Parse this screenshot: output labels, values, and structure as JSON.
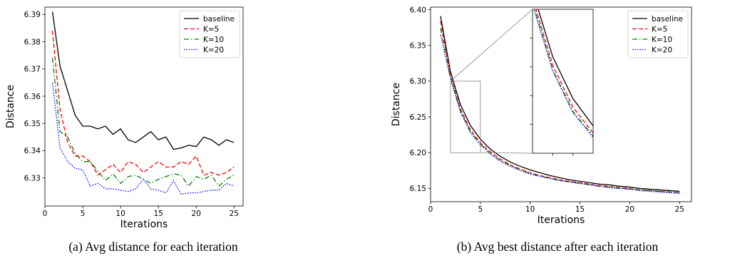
{
  "chart_data": [
    {
      "type": "line",
      "caption": "(a) Avg distance for each iteration",
      "xlabel": "Iterations",
      "ylabel": "Distance",
      "xlim": [
        0,
        26.2
      ],
      "ylim": [
        6.3197,
        6.3927
      ],
      "xticks": [
        0,
        5,
        10,
        15,
        20,
        25
      ],
      "yticks": [
        6.33,
        6.34,
        6.35,
        6.36,
        6.37,
        6.38,
        6.39
      ],
      "grid": false,
      "legend": "top-right",
      "x": [
        1,
        2,
        3,
        4,
        5,
        6,
        7,
        8,
        9,
        10,
        11,
        12,
        13,
        14,
        15,
        16,
        17,
        18,
        19,
        20,
        21,
        22,
        23,
        24,
        25
      ],
      "series": [
        {
          "name": "baseline",
          "color": "#000000",
          "dash": "solid",
          "values": [
            6.391,
            6.371,
            6.362,
            6.353,
            6.349,
            6.349,
            6.348,
            6.349,
            6.346,
            6.348,
            6.344,
            6.343,
            6.345,
            6.347,
            6.344,
            6.345,
            6.3405,
            6.341,
            6.342,
            6.3415,
            6.345,
            6.344,
            6.342,
            6.344,
            6.343
          ]
        },
        {
          "name": "K=5",
          "color": "#ff0000",
          "dash": "dashed",
          "values": [
            6.384,
            6.355,
            6.343,
            6.338,
            6.338,
            6.336,
            6.331,
            6.333,
            6.335,
            6.332,
            6.336,
            6.335,
            6.332,
            6.334,
            6.336,
            6.334,
            6.334,
            6.336,
            6.335,
            6.338,
            6.331,
            6.332,
            6.331,
            6.332,
            6.334
          ]
        },
        {
          "name": "K=10",
          "color": "#008000",
          "dash": "dashdot",
          "values": [
            6.374,
            6.347,
            6.345,
            6.339,
            6.336,
            6.336,
            6.3325,
            6.329,
            6.3315,
            6.328,
            6.3305,
            6.331,
            6.3295,
            6.328,
            6.3295,
            6.3305,
            6.3315,
            6.331,
            6.327,
            6.3305,
            6.3295,
            6.331,
            6.327,
            6.3295,
            6.331
          ]
        },
        {
          "name": "K=20",
          "color": "#0000ff",
          "dash": "dotted",
          "values": [
            6.365,
            6.341,
            6.336,
            6.3335,
            6.333,
            6.327,
            6.328,
            6.326,
            6.326,
            6.3255,
            6.325,
            6.326,
            6.3295,
            6.326,
            6.3255,
            6.3245,
            6.329,
            6.324,
            6.3245,
            6.3245,
            6.325,
            6.3255,
            6.3255,
            6.328,
            6.327
          ]
        }
      ]
    },
    {
      "type": "line",
      "caption": "(b) Avg best distance after each iteration",
      "xlabel": "Iterations",
      "ylabel": "Distance",
      "xlim": [
        0,
        26.2
      ],
      "ylim": [
        6.1315,
        6.4035
      ],
      "xticks": [
        0,
        5,
        10,
        15,
        20,
        25
      ],
      "yticks": [
        6.15,
        6.2,
        6.25,
        6.3,
        6.35,
        6.4
      ],
      "ytick_labels": [
        "6.15",
        "6.20",
        "6.25",
        "6.30",
        "6.35",
        "6.40"
      ],
      "grid": false,
      "legend": "top-right",
      "zoom_region": {
        "x": [
          2,
          5
        ],
        "y": [
          6.2,
          6.3
        ]
      },
      "x": [
        1,
        2,
        3,
        4,
        5,
        6,
        7,
        8,
        9,
        10,
        11,
        12,
        13,
        14,
        15,
        16,
        17,
        18,
        19,
        20,
        21,
        22,
        23,
        24,
        25
      ],
      "series": [
        {
          "name": "baseline",
          "color": "#000000",
          "dash": "solid",
          "values": [
            6.391,
            6.313,
            6.267,
            6.238,
            6.219,
            6.205,
            6.195,
            6.187,
            6.181,
            6.176,
            6.172,
            6.168,
            6.165,
            6.162,
            6.16,
            6.158,
            6.156,
            6.155,
            6.153,
            6.152,
            6.15,
            6.149,
            6.148,
            6.147,
            6.146
          ]
        },
        {
          "name": "K=5",
          "color": "#ff0000",
          "dash": "dashed",
          "values": [
            6.384,
            6.308,
            6.261,
            6.232,
            6.214,
            6.201,
            6.191,
            6.183,
            6.177,
            6.172,
            6.168,
            6.165,
            6.162,
            6.16,
            6.158,
            6.156,
            6.154,
            6.153,
            6.151,
            6.15,
            6.148,
            6.147,
            6.146,
            6.145,
            6.144
          ]
        },
        {
          "name": "K=10",
          "color": "#008000",
          "dash": "dashdot",
          "values": [
            6.374,
            6.305,
            6.258,
            6.229,
            6.212,
            6.199,
            6.189,
            6.182,
            6.176,
            6.171,
            6.167,
            6.164,
            6.161,
            6.159,
            6.157,
            6.155,
            6.153,
            6.152,
            6.15,
            6.149,
            6.148,
            6.147,
            6.146,
            6.145,
            6.144
          ]
        },
        {
          "name": "K=20",
          "color": "#0000ff",
          "dash": "dotted",
          "values": [
            6.365,
            6.303,
            6.257,
            6.228,
            6.211,
            6.198,
            6.188,
            6.181,
            6.175,
            6.17,
            6.167,
            6.164,
            6.161,
            6.159,
            6.157,
            6.155,
            6.153,
            6.151,
            6.15,
            6.149,
            6.147,
            6.146,
            6.145,
            6.144,
            6.143
          ]
        }
      ]
    }
  ]
}
